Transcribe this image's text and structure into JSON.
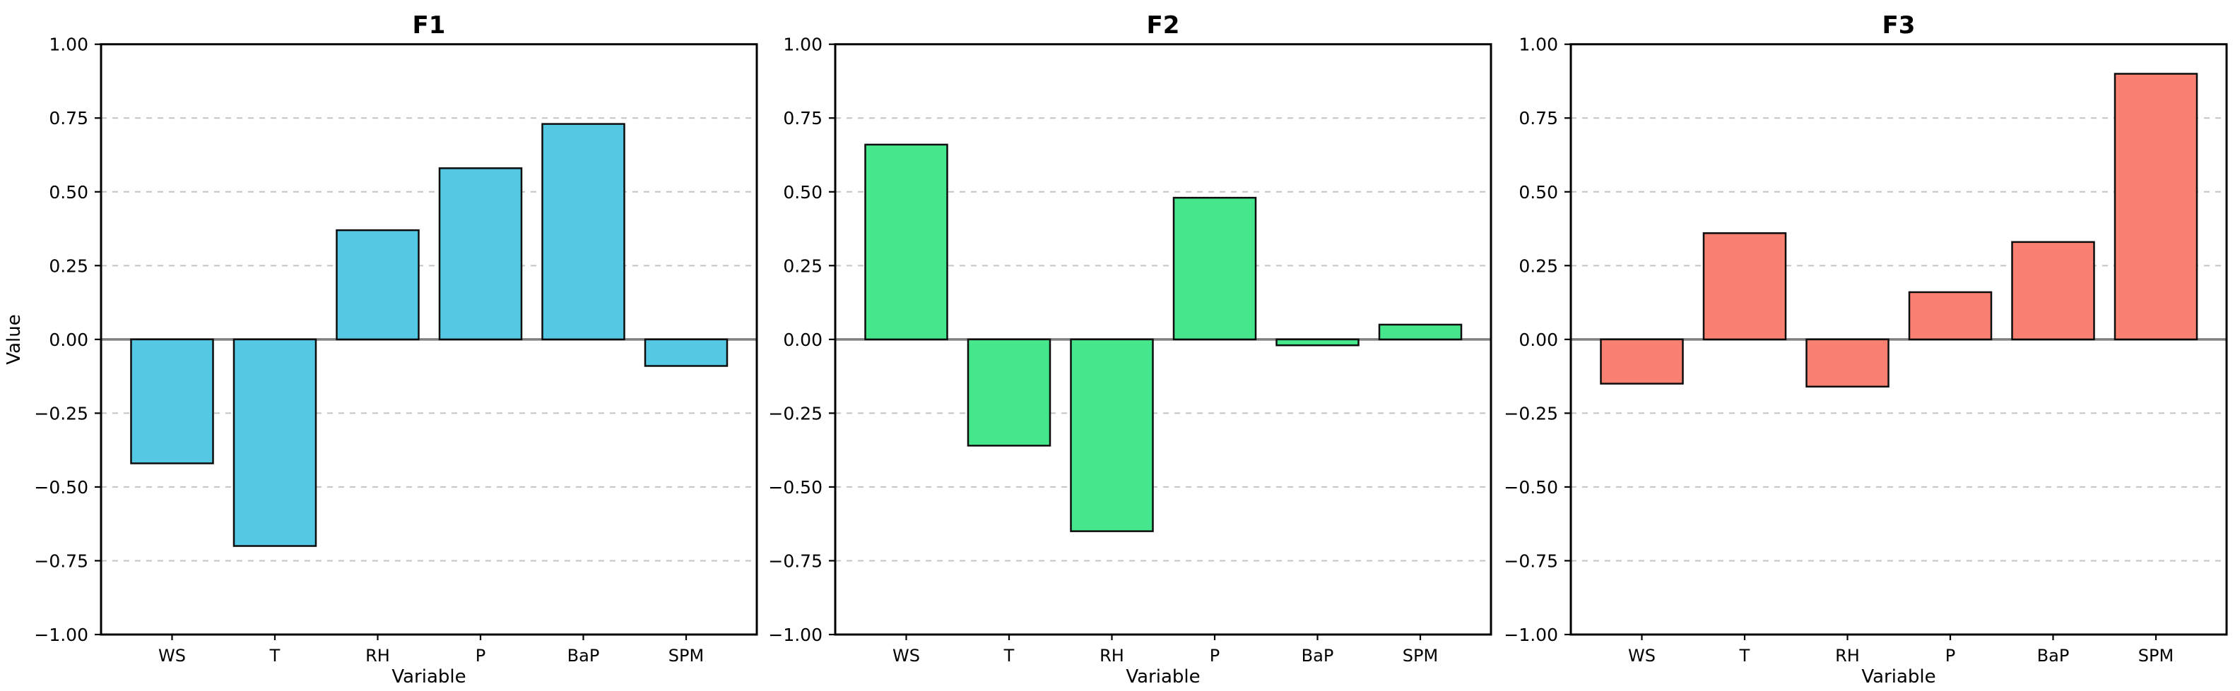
{
  "figure": {
    "background": "#ffffff",
    "spine_color": "#000000",
    "grid_color": "#c4c4c4",
    "zero_line_color": "#7f7f7f",
    "bar_edge_color": "#0d0d0d",
    "tick_color": "#000000"
  },
  "chart_data": [
    {
      "type": "bar",
      "title": "F1",
      "xlabel": "Variable",
      "ylabel": "Value",
      "categories": [
        "WS",
        "T",
        "RH",
        "P",
        "BaP",
        "SPM"
      ],
      "values": [
        -0.42,
        -0.7,
        0.37,
        0.58,
        0.73,
        -0.09
      ],
      "bar_color": "#55c8e3",
      "ylim": [
        -1.0,
        1.0
      ],
      "ytick_values": [
        1.0,
        0.75,
        0.5,
        0.25,
        0.0,
        -0.25,
        -0.5,
        -0.75,
        -1.0
      ],
      "ytick_labels": [
        "1.00",
        "0.75",
        "0.50",
        "0.25",
        "0.00",
        "−0.25",
        "−0.50",
        "−0.75",
        "−1.00"
      ],
      "grid": "horizontal-dashed",
      "legend": "none"
    },
    {
      "type": "bar",
      "title": "F2",
      "xlabel": "Variable",
      "ylabel": "",
      "categories": [
        "WS",
        "T",
        "RH",
        "P",
        "BaP",
        "SPM"
      ],
      "values": [
        0.66,
        -0.36,
        -0.65,
        0.48,
        -0.02,
        0.05
      ],
      "bar_color": "#45e68c",
      "ylim": [
        -1.0,
        1.0
      ],
      "ytick_values": [
        1.0,
        0.75,
        0.5,
        0.25,
        0.0,
        -0.25,
        -0.5,
        -0.75,
        -1.0
      ],
      "ytick_labels": [
        "1.00",
        "0.75",
        "0.50",
        "0.25",
        "0.00",
        "−0.25",
        "−0.50",
        "−0.75",
        "−1.00"
      ],
      "grid": "horizontal-dashed",
      "legend": "none"
    },
    {
      "type": "bar",
      "title": "F3",
      "xlabel": "Variable",
      "ylabel": "",
      "categories": [
        "WS",
        "T",
        "RH",
        "P",
        "BaP",
        "SPM"
      ],
      "values": [
        -0.15,
        0.36,
        -0.16,
        0.16,
        0.33,
        0.9
      ],
      "bar_color": "#fa8072",
      "ylim": [
        -1.0,
        1.0
      ],
      "ytick_values": [
        1.0,
        0.75,
        0.5,
        0.25,
        0.0,
        -0.25,
        -0.5,
        -0.75,
        -1.0
      ],
      "ytick_labels": [
        "1.00",
        "0.75",
        "0.50",
        "0.25",
        "0.00",
        "−0.25",
        "−0.50",
        "−0.75",
        "−1.00"
      ],
      "grid": "horizontal-dashed",
      "legend": "none"
    }
  ]
}
